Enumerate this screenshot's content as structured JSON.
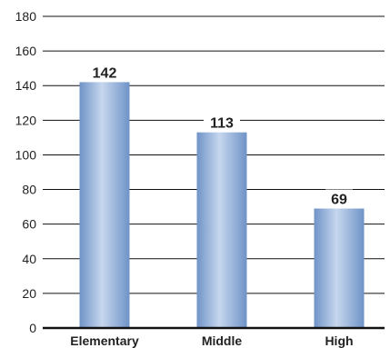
{
  "chart_data": {
    "type": "bar",
    "categories": [
      "Elementary",
      "Middle",
      "High"
    ],
    "values": [
      142,
      113,
      69
    ],
    "data_labels": [
      "142",
      "113",
      "69"
    ],
    "title": "",
    "xlabel": "",
    "ylabel": "",
    "ylim": [
      0,
      180
    ],
    "yticks": [
      "0",
      "20",
      "40",
      "60",
      "80",
      "100",
      "120",
      "140",
      "160",
      "180"
    ],
    "grid": true,
    "legend": "none",
    "colors": {
      "bar_dark": "#6f93c7",
      "bar_light": "#c6d7ee",
      "grid": "#111111",
      "text": "#222222"
    }
  }
}
